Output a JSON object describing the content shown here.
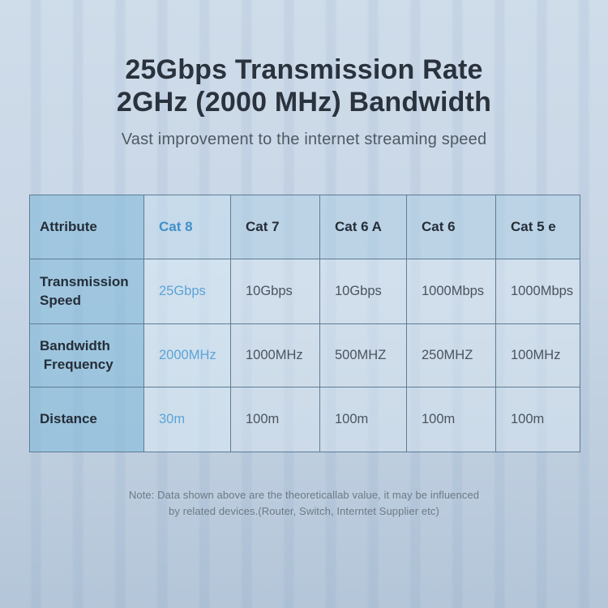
{
  "header": {
    "title_line1": "25Gbps Transmission Rate",
    "title_line2": "2GHz (2000 MHz) Bandwidth",
    "subtitle": "Vast improvement to the internet streaming speed"
  },
  "footnote": {
    "line1": "Note: Data shown above are the theoreticallab value, it may be influenced",
    "line2": "by related devices.(Router, Switch, Interntet Supplier etc)"
  },
  "colors": {
    "title_text": "#2a333d",
    "subtitle_text": "#4f5a64",
    "table_border": "#5d7c93",
    "attribute_column_bg": "#aacfe2",
    "header_row_bg": "#c2d8e7",
    "data_cell_bg": "#cfdde9",
    "highlight_text_bold": "#4190c8",
    "highlight_text_value": "#5ca3d6",
    "cell_text": "#4a545f",
    "note_text": "#6d7987",
    "background_stripe_light": "#cfdcea",
    "background_stripe_dark": "#c5d4e5"
  },
  "chart_data": {
    "type": "table",
    "title": "25Gbps Transmission Rate 2GHz (2000 MHz) Bandwidth",
    "subtitle": "Vast improvement to the internet streaming speed",
    "header": [
      "Attribute",
      "Cat 8",
      "Cat 7",
      "Cat 6 A",
      "Cat 6",
      "Cat 5 e"
    ],
    "highlight_column": "Cat 8",
    "rows": [
      {
        "label": "Transmission\nSpeed",
        "values": [
          "25Gbps",
          "10Gbps",
          "10Gbps",
          "1000Mbps",
          "1000Mbps"
        ]
      },
      {
        "label": "Bandwidth\n Frequency",
        "values": [
          "2000MHz",
          "1000MHz",
          "500MHZ",
          "250MHZ",
          "100MHz"
        ]
      },
      {
        "label": "Distance",
        "values": [
          "30m",
          "100m",
          "100m",
          "100m",
          "100m"
        ]
      }
    ]
  }
}
